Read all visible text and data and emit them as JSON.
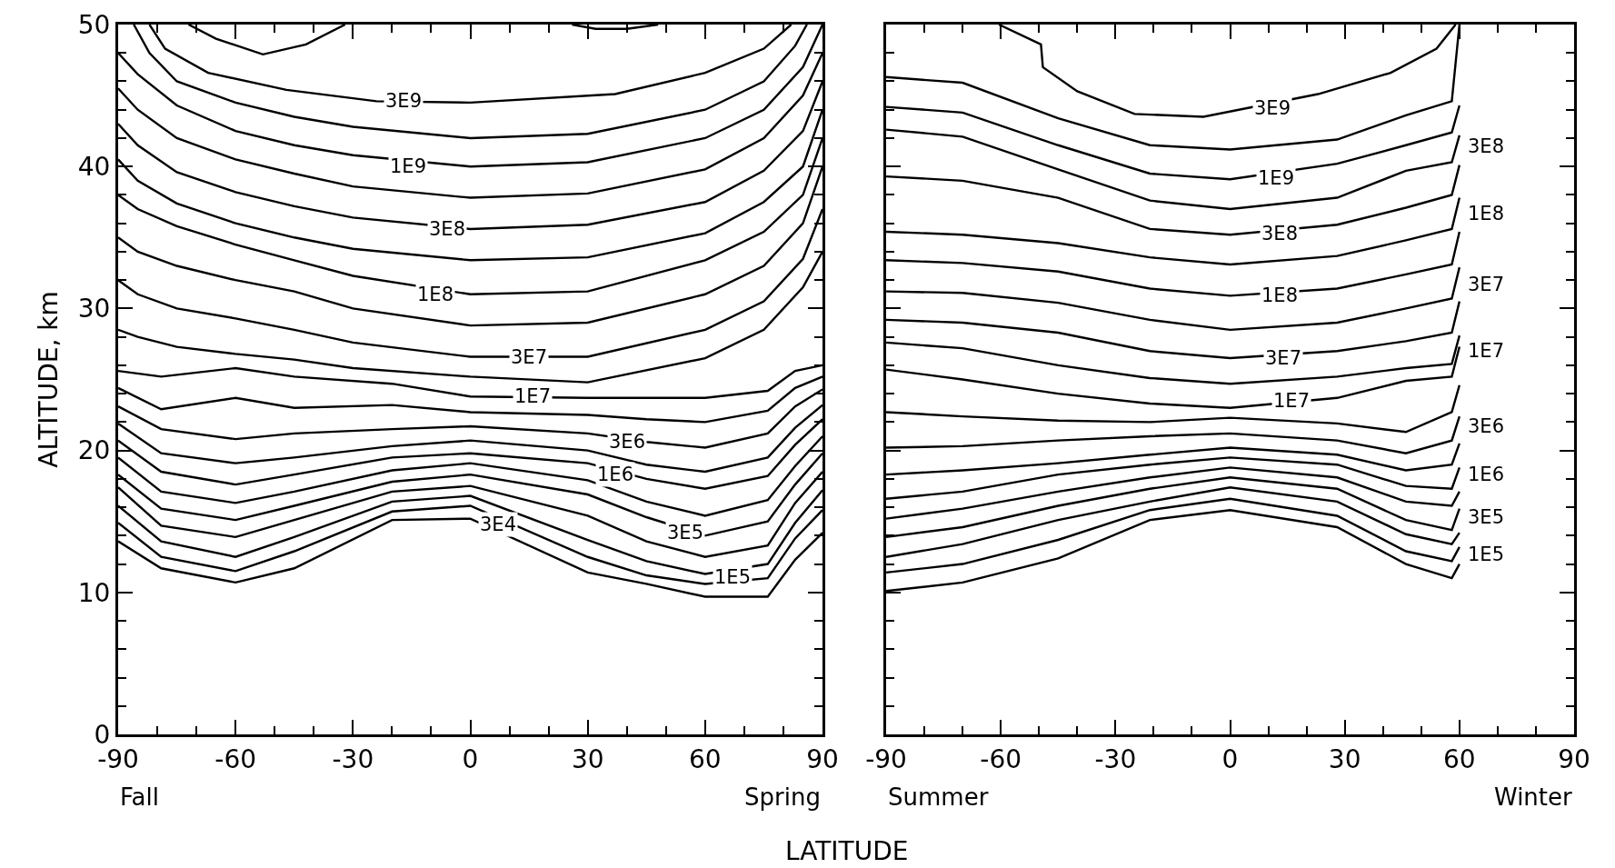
{
  "chart_data": [
    {
      "type": "line",
      "xlabel": "LATITUDE",
      "ylabel": "ALTITUDE, km",
      "xlim": [
        -90,
        90
      ],
      "ylim": [
        0,
        50
      ],
      "xticks": [
        -90,
        {
          "value": -80,
          "label": null
        },
        {
          "value": -70,
          "label": null
        },
        -60,
        {
          "value": -50,
          "label": null
        },
        {
          "value": -40,
          "label": null
        },
        -30,
        {
          "value": -20,
          "label": null
        },
        {
          "value": -10,
          "label": null
        },
        0,
        {
          "value": 10,
          "label": null
        },
        {
          "value": 20,
          "label": null
        },
        30,
        {
          "value": 40,
          "label": null
        },
        {
          "value": 50,
          "label": null
        },
        60,
        {
          "value": 70,
          "label": null
        },
        {
          "value": 80,
          "label": null
        },
        90
      ],
      "yticks": [
        0,
        {
          "value": 2,
          "label": null
        },
        {
          "value": 4,
          "label": null
        },
        {
          "value": 6,
          "label": null
        },
        {
          "value": 8,
          "label": null
        },
        10,
        {
          "value": 12,
          "label": null
        },
        {
          "value": 14,
          "label": null
        },
        {
          "value": 16,
          "label": null
        },
        {
          "value": 18,
          "label": null
        },
        20,
        {
          "value": 22,
          "label": null
        },
        {
          "value": 24,
          "label": null
        },
        {
          "value": 26,
          "label": null
        },
        {
          "value": 28,
          "label": null
        },
        30,
        {
          "value": 32,
          "label": null
        },
        {
          "value": 34,
          "label": null
        },
        {
          "value": 36,
          "label": null
        },
        {
          "value": 38,
          "label": null
        },
        40,
        {
          "value": 42,
          "label": null
        },
        {
          "value": 44,
          "label": null
        },
        {
          "value": 46,
          "label": null
        },
        {
          "value": 48,
          "label": null
        },
        50
      ],
      "series": [
        {
          "color": "#000000",
          "x": [
            -72,
            -65,
            -53,
            -42,
            -32
          ],
          "values": [
            50,
            49,
            47.9,
            48.6,
            50
          ]
        },
        {
          "color": "#000000",
          "x": [
            26,
            32,
            40,
            48
          ],
          "values": [
            50,
            49.7,
            49.7,
            50
          ]
        },
        {
          "color": "#000000",
          "x": [
            -82,
            -78,
            -67,
            -47,
            -24,
            0,
            37,
            60,
            75,
            82
          ],
          "values": [
            50,
            48.3,
            46.6,
            45.4,
            44.6,
            44.5,
            45.1,
            46.6,
            48.3,
            50
          ]
        },
        {
          "color": "#000000",
          "x": [
            -86,
            -82,
            -75,
            -60,
            -45,
            -30,
            0,
            30,
            60,
            75,
            83,
            86
          ],
          "values": [
            50,
            48,
            46,
            44.5,
            43.5,
            42.8,
            42.0,
            42.3,
            44,
            46,
            48.5,
            50
          ]
        },
        {
          "color": "#000000",
          "x": [
            -90,
            -85,
            -75,
            -60,
            -45,
            -30,
            0,
            30,
            60,
            75,
            85,
            90
          ],
          "values": [
            48,
            46.5,
            44.3,
            42.5,
            41.5,
            40.8,
            40.0,
            40.3,
            42,
            44,
            47,
            50
          ]
        },
        {
          "color": "#000000",
          "x": [
            -90,
            -85,
            -75,
            -60,
            -45,
            -30,
            0,
            30,
            60,
            75,
            85,
            90
          ],
          "values": [
            45.5,
            44,
            42,
            40.5,
            39.5,
            38.6,
            37.8,
            38.1,
            39.8,
            42,
            45,
            48
          ]
        },
        {
          "color": "#000000",
          "x": [
            -90,
            -85,
            -75,
            -60,
            -45,
            -30,
            0,
            30,
            60,
            75,
            85,
            90
          ],
          "values": [
            43,
            41.5,
            39.6,
            38.2,
            37.2,
            36.4,
            35.6,
            35.9,
            37.5,
            39.7,
            42.5,
            46
          ]
        },
        {
          "color": "#000000",
          "x": [
            -90,
            -85,
            -75,
            -60,
            -45,
            -30,
            0,
            30,
            60,
            75,
            85,
            90
          ],
          "values": [
            40.5,
            39,
            37.4,
            36,
            35,
            34.2,
            33.4,
            33.6,
            35.3,
            37.5,
            40,
            44
          ]
        },
        {
          "color": "#000000",
          "x": [
            -90,
            -85,
            -75,
            -60,
            -45,
            -30,
            0,
            30,
            60,
            75,
            85,
            90
          ],
          "values": [
            38,
            37,
            35.8,
            34.5,
            33.4,
            32.3,
            31.0,
            31.2,
            33.4,
            35.4,
            38,
            42
          ]
        },
        {
          "color": "#000000",
          "x": [
            -90,
            -85,
            -75,
            -60,
            -45,
            -30,
            0,
            30,
            60,
            75,
            85,
            90
          ],
          "values": [
            35,
            34,
            33,
            32,
            31.2,
            30,
            28.8,
            29,
            31,
            33,
            36,
            40
          ]
        },
        {
          "color": "#000000",
          "x": [
            -90,
            -85,
            -75,
            -60,
            -45,
            -30,
            0,
            30,
            60,
            75,
            85,
            90
          ],
          "values": [
            32,
            31,
            30,
            29.3,
            28.5,
            27.6,
            26.6,
            26.6,
            28.5,
            30.5,
            33.5,
            37
          ]
        },
        {
          "color": "#000000",
          "x": [
            -90,
            -85,
            -75,
            -60,
            -45,
            -30,
            0,
            30,
            60,
            75,
            85,
            90
          ],
          "values": [
            28.5,
            28,
            27.3,
            26.8,
            26.4,
            25.8,
            25.2,
            24.8,
            26.5,
            28.5,
            31.5,
            34
          ]
        },
        {
          "color": "#000000",
          "x": [
            -90,
            -79,
            -60,
            -45,
            -20,
            0,
            30,
            45,
            60,
            76,
            83,
            90
          ],
          "values": [
            25.6,
            25.2,
            25.8,
            25.2,
            24.7,
            23.8,
            23.7,
            23.7,
            23.7,
            24.2,
            25.6,
            26.0
          ]
        },
        {
          "color": "#000000",
          "x": [
            -90,
            -79,
            -60,
            -45,
            -20,
            0,
            30,
            45,
            60,
            76,
            83,
            90
          ],
          "values": [
            24.4,
            22.9,
            23.7,
            23.0,
            23.2,
            22.7,
            22.5,
            22.2,
            22.0,
            22.8,
            24.4,
            25.2
          ]
        },
        {
          "color": "#000000",
          "x": [
            -90,
            -79,
            -60,
            -45,
            -20,
            0,
            30,
            45,
            60,
            76,
            83,
            90
          ],
          "values": [
            23.1,
            21.5,
            20.8,
            21.2,
            21.5,
            21.7,
            21.2,
            20.6,
            20.2,
            21.2,
            23.1,
            24.3
          ]
        },
        {
          "color": "#000000",
          "x": [
            -90,
            -79,
            -60,
            -45,
            -20,
            0,
            30,
            45,
            60,
            76,
            83,
            90
          ],
          "values": [
            21.9,
            19.8,
            19.1,
            19.5,
            20.3,
            20.7,
            20.0,
            19.0,
            18.5,
            19.5,
            21.6,
            23.2
          ]
        },
        {
          "color": "#000000",
          "x": [
            -90,
            -79,
            -60,
            -45,
            -20,
            0,
            30,
            45,
            60,
            76,
            83,
            90
          ],
          "values": [
            20.7,
            18.5,
            17.6,
            18.3,
            19.5,
            19.8,
            19.1,
            18.0,
            17.3,
            18.2,
            20.4,
            22.2
          ]
        },
        {
          "color": "#000000",
          "x": [
            -90,
            -79,
            -60,
            -45,
            -20,
            0,
            30,
            45,
            60,
            76,
            83,
            90
          ],
          "values": [
            19.5,
            17.1,
            16.3,
            17.1,
            18.6,
            19.1,
            17.9,
            16.4,
            15.4,
            16.5,
            18.9,
            21.0
          ]
        },
        {
          "color": "#000000",
          "x": [
            -90,
            -79,
            -60,
            -45,
            -20,
            0,
            30,
            45,
            60,
            76,
            83,
            90
          ],
          "values": [
            18.3,
            15.9,
            15.1,
            16.1,
            17.8,
            18.3,
            16.9,
            15.3,
            14.0,
            15.0,
            17.6,
            19.8
          ]
        },
        {
          "color": "#000000",
          "x": [
            -90,
            -79,
            -60,
            -45,
            -20,
            0,
            30,
            45,
            60,
            76,
            83,
            90
          ],
          "values": [
            17.4,
            14.7,
            13.9,
            15.1,
            17.1,
            17.5,
            15.4,
            13.6,
            12.5,
            13.3,
            16.3,
            18.5
          ]
        },
        {
          "color": "#000000",
          "x": [
            -90,
            -79,
            -60,
            -45,
            -20,
            0,
            30,
            45,
            60,
            76,
            83,
            90
          ],
          "values": [
            16.1,
            13.6,
            12.5,
            13.9,
            16.4,
            16.8,
            13.7,
            12.2,
            11.3,
            12.0,
            14.9,
            17.2
          ]
        },
        {
          "color": "#000000",
          "x": [
            -90,
            -79,
            -60,
            -45,
            -20,
            0,
            30,
            45,
            60,
            76,
            83,
            90
          ],
          "values": [
            14.9,
            12.5,
            11.5,
            12.9,
            15.7,
            16.1,
            12.5,
            11.2,
            10.6,
            11.0,
            13.8,
            15.8
          ]
        },
        {
          "color": "#000000",
          "x": [
            -90,
            -79,
            -60,
            -45,
            -20,
            0,
            30,
            45,
            60,
            76,
            83,
            90
          ],
          "values": [
            13.6,
            11.7,
            10.7,
            11.7,
            15.1,
            15.2,
            11.4,
            10.6,
            9.7,
            9.7,
            12.3,
            14.2
          ]
        }
      ],
      "annotations": [
        "Fall",
        "Spring",
        {
          "text": "3E9",
          "x": -17,
          "y": 44.6
        },
        {
          "text": "1E9",
          "x": -16,
          "y": 40.0
        },
        {
          "text": "3E8",
          "x": -6,
          "y": 35.6
        },
        {
          "text": "1E8",
          "x": -9,
          "y": 31.0
        },
        {
          "text": "3E7",
          "x": 15,
          "y": 26.6
        },
        {
          "text": "1E7",
          "x": 16,
          "y": 23.8
        },
        {
          "text": "3E6",
          "x": 40,
          "y": 20.6
        },
        {
          "text": "1E6",
          "x": 37,
          "y": 18.3
        },
        {
          "text": "3E5",
          "x": 55,
          "y": 14.2
        },
        {
          "text": "1E5",
          "x": 67,
          "y": 11.1
        },
        {
          "text": "3E4",
          "x": 7,
          "y": 14.8
        }
      ]
    },
    {
      "type": "line",
      "tick_labels": "x",
      "xlim": [
        -90,
        90
      ],
      "ylim": [
        0,
        50
      ],
      "xticks": [
        -90,
        {
          "value": -80,
          "label": null
        },
        {
          "value": -70,
          "label": null
        },
        -60,
        {
          "value": -50,
          "label": null
        },
        {
          "value": -40,
          "label": null
        },
        -30,
        {
          "value": -20,
          "label": null
        },
        {
          "value": -10,
          "label": null
        },
        0,
        {
          "value": 10,
          "label": null
        },
        {
          "value": 20,
          "label": null
        },
        30,
        {
          "value": 40,
          "label": null
        },
        {
          "value": 50,
          "label": null
        },
        60,
        {
          "value": 70,
          "label": null
        },
        {
          "value": 80,
          "label": null
        },
        90
      ],
      "yticks": [
        0,
        {
          "value": 2,
          "label": null
        },
        {
          "value": 4,
          "label": null
        },
        {
          "value": 6,
          "label": null
        },
        {
          "value": 8,
          "label": null
        },
        10,
        {
          "value": 12,
          "label": null
        },
        {
          "value": 14,
          "label": null
        },
        {
          "value": 16,
          "label": null
        },
        {
          "value": 18,
          "label": null
        },
        20,
        {
          "value": 22,
          "label": null
        },
        {
          "value": 24,
          "label": null
        },
        {
          "value": 26,
          "label": null
        },
        {
          "value": 28,
          "label": null
        },
        30,
        {
          "value": 32,
          "label": null
        },
        {
          "value": 34,
          "label": null
        },
        {
          "value": 36,
          "label": null
        },
        {
          "value": 38,
          "label": null
        },
        40,
        {
          "value": 42,
          "label": null
        },
        {
          "value": 44,
          "label": null
        },
        {
          "value": 46,
          "label": null
        },
        {
          "value": 48,
          "label": null
        },
        50
      ],
      "series": [
        {
          "color": "#000000",
          "x": [
            -60.5,
            -49.5,
            -49,
            -40,
            -25,
            -7,
            23,
            42,
            54,
            59
          ],
          "values": [
            50,
            48.6,
            47.0,
            45.3,
            43.7,
            43.5,
            45.1,
            46.6,
            48.3,
            50
          ]
        },
        {
          "color": "#000000",
          "x": [
            -90,
            -70,
            -45,
            -21,
            0,
            28,
            46,
            58,
            60
          ],
          "values": [
            46.3,
            45.9,
            43.4,
            41.5,
            41.2,
            41.9,
            43.6,
            44.6,
            50
          ]
        },
        {
          "color": "#000000",
          "x": [
            -90,
            -70,
            -45,
            -21,
            0,
            28,
            46,
            58,
            60
          ],
          "values": [
            44.2,
            43.8,
            41.5,
            39.5,
            39.1,
            40.2,
            41.5,
            42.4,
            44.3
          ]
        },
        {
          "color": "#000000",
          "x": [
            -90,
            -70,
            -45,
            -21,
            0,
            28,
            46,
            58,
            60
          ],
          "values": [
            42.6,
            42.1,
            39.8,
            37.6,
            37.0,
            37.8,
            39.7,
            40.3,
            42.2
          ]
        },
        {
          "color": "#000000",
          "x": [
            -90,
            -70,
            -45,
            -21,
            0,
            28,
            46,
            58,
            60
          ],
          "values": [
            39.3,
            39.0,
            37.8,
            35.6,
            35.2,
            35.9,
            37.1,
            38.0,
            40.1
          ]
        },
        {
          "color": "#000000",
          "x": [
            -90,
            -70,
            -45,
            -21,
            0,
            28,
            46,
            58,
            60
          ],
          "values": [
            35.4,
            35.2,
            34.6,
            33.6,
            33.1,
            33.7,
            34.8,
            35.6,
            37.8
          ]
        },
        {
          "color": "#000000",
          "x": [
            -90,
            -70,
            -45,
            -21,
            0,
            28,
            46,
            58,
            60
          ],
          "values": [
            33.4,
            33.2,
            32.6,
            31.4,
            30.9,
            31.4,
            32.4,
            33.1,
            35.4
          ]
        },
        {
          "color": "#000000",
          "x": [
            -90,
            -70,
            -45,
            -21,
            0,
            28,
            46,
            58,
            60
          ],
          "values": [
            31.2,
            31.1,
            30.4,
            29.2,
            28.5,
            29.0,
            30.0,
            30.7,
            32.9
          ]
        },
        {
          "color": "#000000",
          "x": [
            -90,
            -70,
            -45,
            -21,
            0,
            28,
            46,
            58,
            60
          ],
          "values": [
            29.2,
            29.0,
            28.3,
            27.0,
            26.5,
            27.0,
            27.7,
            28.3,
            30.5
          ]
        },
        {
          "color": "#000000",
          "x": [
            -90,
            -70,
            -45,
            -21,
            0,
            28,
            46,
            58,
            60
          ],
          "values": [
            27.6,
            27.2,
            26.0,
            25.1,
            24.7,
            25.2,
            25.8,
            26.1,
            28.1
          ]
        },
        {
          "color": "#000000",
          "x": [
            -90,
            -70,
            -45,
            -21,
            0,
            28,
            46,
            58,
            60
          ],
          "values": [
            25.7,
            25.0,
            24.0,
            23.3,
            23.0,
            23.7,
            24.9,
            25.2,
            27.3
          ]
        },
        {
          "color": "#000000",
          "x": [
            -90,
            -70,
            -45,
            -21,
            0,
            28,
            46,
            58,
            60
          ],
          "values": [
            22.7,
            22.4,
            22.1,
            22.0,
            22.3,
            21.9,
            21.3,
            22.7,
            24.6
          ]
        },
        {
          "color": "#000000",
          "x": [
            -90,
            -70,
            -45,
            -21,
            0,
            28,
            46,
            58,
            60
          ],
          "values": [
            20.2,
            20.3,
            20.7,
            21.0,
            21.2,
            20.7,
            19.8,
            20.7,
            22.4
          ]
        },
        {
          "color": "#000000",
          "x": [
            -90,
            -70,
            -45,
            -21,
            0,
            28,
            46,
            58,
            60
          ],
          "values": [
            18.3,
            18.6,
            19.1,
            19.7,
            20.2,
            19.7,
            18.6,
            19.0,
            20.5
          ]
        },
        {
          "color": "#000000",
          "x": [
            -90,
            -70,
            -45,
            -21,
            0,
            28,
            46,
            58,
            60
          ],
          "values": [
            16.6,
            17.1,
            18.3,
            19.0,
            19.5,
            19.0,
            17.5,
            17.3,
            18.8
          ]
        },
        {
          "color": "#000000",
          "x": [
            -90,
            -70,
            -45,
            -21,
            0,
            28,
            46,
            58,
            60
          ],
          "values": [
            15.2,
            15.9,
            17.1,
            18.1,
            18.8,
            18.1,
            16.4,
            16.1,
            17.1
          ]
        },
        {
          "color": "#000000",
          "x": [
            -90,
            -70,
            -45,
            -21,
            0,
            28,
            46,
            58,
            60
          ],
          "values": [
            13.9,
            14.6,
            16.1,
            17.3,
            18.1,
            17.3,
            15.1,
            14.4,
            15.9
          ]
        },
        {
          "color": "#000000",
          "x": [
            -90,
            -70,
            -45,
            -21,
            0,
            28,
            46,
            58,
            60
          ],
          "values": [
            12.5,
            13.4,
            15.1,
            16.4,
            17.4,
            16.4,
            14.1,
            13.4,
            14.2
          ]
        },
        {
          "color": "#000000",
          "x": [
            -90,
            -70,
            -45,
            -21,
            0,
            28,
            46,
            58,
            60
          ],
          "values": [
            11.4,
            12.0,
            13.7,
            15.8,
            16.6,
            15.4,
            12.9,
            12.2,
            13.2
          ]
        },
        {
          "color": "#000000",
          "x": [
            -90,
            -70,
            -45,
            -21,
            0,
            28,
            46,
            58,
            60
          ],
          "values": [
            10.1,
            10.7,
            12.4,
            15.1,
            15.8,
            14.6,
            12.0,
            11.0,
            12.0
          ]
        }
      ],
      "annotations": [
        "Summer",
        "Winter",
        {
          "text": "3E9",
          "x": 11,
          "y": 44.1
        },
        {
          "text": "1E9",
          "x": 12,
          "y": 39.2
        },
        {
          "text": "3E8",
          "x": 13,
          "y": 35.3
        },
        {
          "text": "1E8",
          "x": 13,
          "y": 30.9
        },
        {
          "text": "3E7",
          "x": 14,
          "y": 26.5
        },
        {
          "text": "1E7",
          "x": 16,
          "y": 23.5
        },
        {
          "text": "3E8",
          "x": 67,
          "y": 41.4
        },
        {
          "text": "1E8",
          "x": 67,
          "y": 36.7
        },
        {
          "text": "3E7",
          "x": 67,
          "y": 31.7
        },
        {
          "text": "1E7",
          "x": 67,
          "y": 27.0
        },
        {
          "text": "3E6",
          "x": 67,
          "y": 21.7
        },
        {
          "text": "1E6",
          "x": 67,
          "y": 18.3
        },
        {
          "text": "3E5",
          "x": 67,
          "y": 15.3
        },
        {
          "text": "1E5",
          "x": 67,
          "y": 12.7
        }
      ]
    }
  ]
}
